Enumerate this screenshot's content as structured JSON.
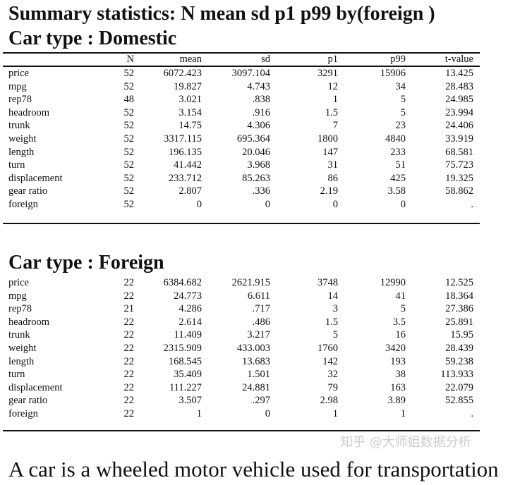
{
  "title": "Summary statistics: N mean sd p1 p99 by(foreign )",
  "columns": [
    "",
    "N",
    "mean",
    "sd",
    "p1",
    "p99",
    "t-value"
  ],
  "groups": [
    {
      "heading": "Car type : Domestic",
      "rows": [
        [
          "price",
          "52",
          "6072.423",
          "3097.104",
          "3291",
          "15906",
          "13.425"
        ],
        [
          "mpg",
          "52",
          "19.827",
          "4.743",
          "12",
          "34",
          "28.483"
        ],
        [
          "rep78",
          "48",
          "3.021",
          ".838",
          "1",
          "5",
          "24.985"
        ],
        [
          "headroom",
          "52",
          "3.154",
          ".916",
          "1.5",
          "5",
          "23.994"
        ],
        [
          "trunk",
          "52",
          "14.75",
          "4.306",
          "7",
          "23",
          "24.406"
        ],
        [
          "weight",
          "52",
          "3317.115",
          "695.364",
          "1800",
          "4840",
          "33.919"
        ],
        [
          "length",
          "52",
          "196.135",
          "20.046",
          "147",
          "233",
          "68.581"
        ],
        [
          "turn",
          "52",
          "41.442",
          "3.968",
          "31",
          "51",
          "75.723"
        ],
        [
          "displacement",
          "52",
          "233.712",
          "85.263",
          "86",
          "425",
          "19.325"
        ],
        [
          "gear ratio",
          "52",
          "2.807",
          ".336",
          "2.19",
          "3.58",
          "58.862"
        ],
        [
          "foreign",
          "52",
          "0",
          "0",
          "0",
          "0",
          "."
        ]
      ]
    },
    {
      "heading": "Car type : Foreign",
      "rows": [
        [
          "price",
          "22",
          "6384.682",
          "2621.915",
          "3748",
          "12990",
          "12.525"
        ],
        [
          "mpg",
          "22",
          "24.773",
          "6.611",
          "14",
          "41",
          "18.364"
        ],
        [
          "rep78",
          "21",
          "4.286",
          ".717",
          "3",
          "5",
          "27.386"
        ],
        [
          "headroom",
          "22",
          "2.614",
          ".486",
          "1.5",
          "3.5",
          "25.891"
        ],
        [
          "trunk",
          "22",
          "11.409",
          "3.217",
          "5",
          "16",
          "15.95"
        ],
        [
          "weight",
          "22",
          "2315.909",
          "433.003",
          "1760",
          "3420",
          "28.439"
        ],
        [
          "length",
          "22",
          "168.545",
          "13.683",
          "142",
          "193",
          "59.238"
        ],
        [
          "turn",
          "22",
          "35.409",
          "1.501",
          "32",
          "38",
          "113.933"
        ],
        [
          "displacement",
          "22",
          "111.227",
          "24.881",
          "79",
          "163",
          "22.079"
        ],
        [
          "gear ratio",
          "22",
          "3.507",
          ".297",
          "2.98",
          "3.89",
          "52.855"
        ],
        [
          "foreign",
          "22",
          "1",
          "0",
          "1",
          "1",
          "."
        ]
      ]
    }
  ],
  "footer_text": "A car is a wheeled motor vehicle used for transportation",
  "watermark": "知乎 @大师姐数据分析"
}
